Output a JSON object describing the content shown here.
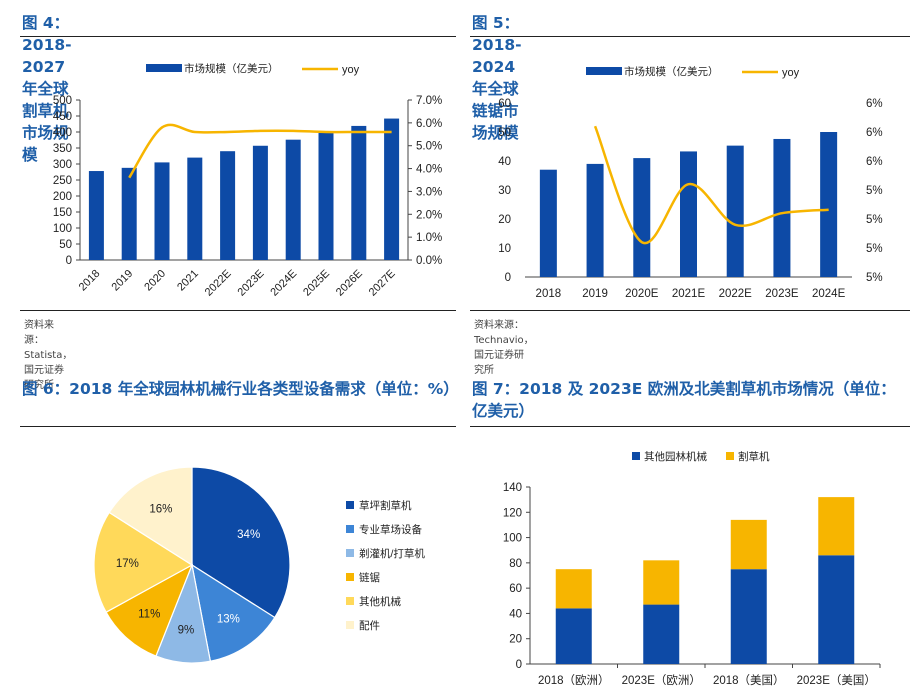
{
  "charts": [
    {
      "title": "图 4：2018-2027 年全球割草机市场规模",
      "source": "资料来源：Statista，国元证券研究所"
    },
    {
      "title": "图 5：2018-2024 年全球链锯市场规模",
      "source": "资料来源：Technavio，国元证券研究所"
    },
    {
      "title": "图 6：2018 年全球园林机械行业各类型设备需求（单位：%）"
    },
    {
      "title": "图 7：2018 及 2023E 欧洲及北美割草机市场情况（单位：亿美元）"
    }
  ],
  "chart_data": [
    {
      "type": "bar",
      "title": "图 4：2018-2027 年全球割草机市场规模",
      "categories": [
        "2018",
        "2019",
        "2020",
        "2021",
        "2022E",
        "2023E",
        "2024E",
        "2025E",
        "2026E",
        "2027E"
      ],
      "series": [
        {
          "name": "市场规模（亿美元）",
          "type": "bar",
          "axis": "left",
          "color": "#0d4aa6",
          "values": [
            278,
            288,
            305,
            320,
            340,
            357,
            376,
            397,
            419,
            442
          ]
        },
        {
          "name": "yoy",
          "type": "line",
          "axis": "right",
          "color": "#f7b500",
          "values": [
            null,
            3.6,
            5.8,
            5.6,
            5.6,
            5.65,
            5.65,
            5.6,
            5.6,
            5.6
          ]
        }
      ],
      "ylim": [
        0,
        500
      ],
      "yticks": [
        0,
        50,
        100,
        150,
        200,
        250,
        300,
        350,
        400,
        450,
        500
      ],
      "y2lim": [
        0,
        7
      ],
      "y2ticks": [
        "0.0%",
        "1.0%",
        "2.0%",
        "3.0%",
        "4.0%",
        "5.0%",
        "6.0%",
        "7.0%"
      ],
      "legend": "top-center",
      "grid": false
    },
    {
      "type": "bar",
      "title": "图 5：2018-2024 年全球链锯市场规模",
      "categories": [
        "2018",
        "2019",
        "2020E",
        "2021E",
        "2022E",
        "2023E",
        "2024E"
      ],
      "series": [
        {
          "name": "市场规模（亿美元）",
          "type": "bar",
          "axis": "left",
          "color": "#0d4aa6",
          "values": [
            37,
            39,
            41,
            43.3,
            45.3,
            47.6,
            50
          ]
        },
        {
          "name": "yoy",
          "type": "line",
          "axis": "right",
          "color": "#f7b500",
          "values": [
            null,
            5.8,
            4.8,
            5.3,
            4.95,
            5.05,
            5.08
          ]
        }
      ],
      "ylim": [
        0,
        60
      ],
      "yticks": [
        0,
        10,
        20,
        30,
        40,
        50,
        60
      ],
      "y2lim": [
        4.5,
        6
      ],
      "y2ticks": [
        "5%",
        "5%",
        "5%",
        "5%",
        "6%",
        "6%",
        "6%"
      ],
      "legend": "top-center",
      "grid": false
    },
    {
      "type": "pie",
      "title": "图 6：2018 年全球园林机械行业各类型设备需求（单位：%）",
      "labels": [
        "草坪割草机",
        "专业草场设备",
        "剃灌机/打草机",
        "链锯",
        "其他机械",
        "配件"
      ],
      "values": [
        34,
        13,
        9,
        11,
        17,
        16
      ],
      "value_labels": [
        "34%",
        "13%",
        "9%",
        "11%",
        "17%",
        "16%"
      ],
      "colors": [
        "#0d4aa6",
        "#3d85d6",
        "#8eb9e6",
        "#f7b500",
        "#ffd95a",
        "#fff2cc"
      ],
      "legend": "right"
    },
    {
      "type": "bar",
      "stacked": true,
      "title": "图 7：2018 及 2023E 欧洲及北美割草机市场情况（单位：亿美元）",
      "categories": [
        "2018（欧洲）",
        "2023E（欧洲）",
        "2018（美国）",
        "2023E（美国）"
      ],
      "series": [
        {
          "name": "其他园林机械",
          "color": "#0d4aa6",
          "values": [
            44,
            47,
            75,
            86
          ]
        },
        {
          "name": "割草机",
          "color": "#f7b500",
          "values": [
            31,
            35,
            39,
            46
          ]
        }
      ],
      "ylim": [
        0,
        140
      ],
      "yticks": [
        0,
        20,
        40,
        60,
        80,
        100,
        120,
        140
      ],
      "legend": "top-center",
      "grid": false
    }
  ]
}
